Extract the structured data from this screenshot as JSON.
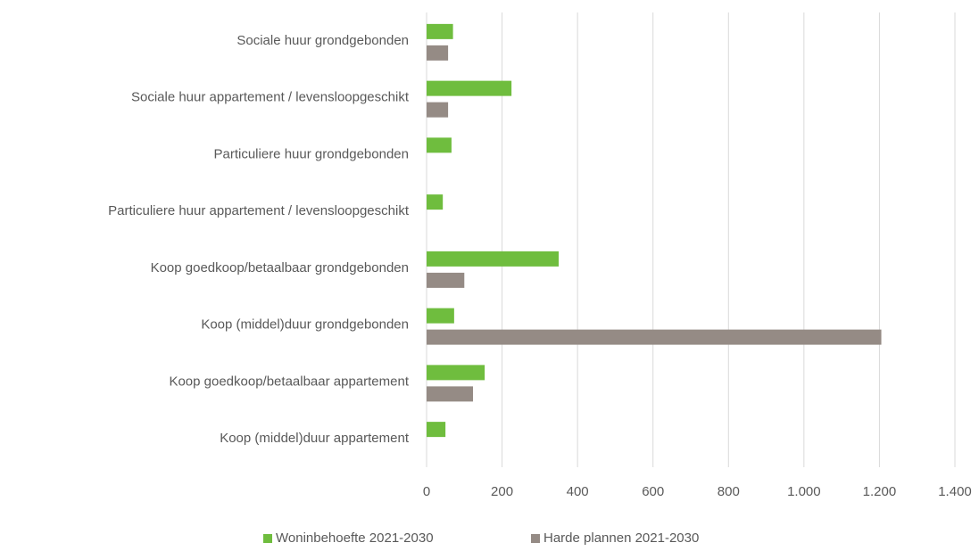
{
  "chart_data": {
    "type": "hbar",
    "categories": [
      "Sociale huur grondgebonden",
      "Sociale huur appartement / levensloopgeschikt",
      "Particuliere huur grondgebonden",
      "Particuliere huur appartement / levensloopgeschikt",
      "Koop goedkoop/betaalbaar grondgebonden",
      "Koop (middel)duur grondgebonden",
      "Koop goedkoop/betaalbaar appartement",
      "Koop (middel)duur appartement"
    ],
    "series": [
      {
        "name": "Woninbehoefte 2021-2030",
        "color": "#6fbd3e",
        "values": [
          70,
          225,
          66,
          43,
          350,
          73,
          154,
          50
        ]
      },
      {
        "name": "Harde plannen 2021-2030",
        "color": "#958b85",
        "values": [
          57,
          57,
          null,
          null,
          100,
          1205,
          123,
          null
        ]
      }
    ],
    "xlim": [
      0,
      1400
    ],
    "xticks": [
      0,
      200,
      400,
      600,
      800,
      {
        "value": 1000,
        "label": "1.000"
      },
      {
        "value": 1200,
        "label": "1.200"
      },
      {
        "value": 1400,
        "label": "1.400"
      }
    ],
    "grid": true,
    "legend": "bottom"
  }
}
